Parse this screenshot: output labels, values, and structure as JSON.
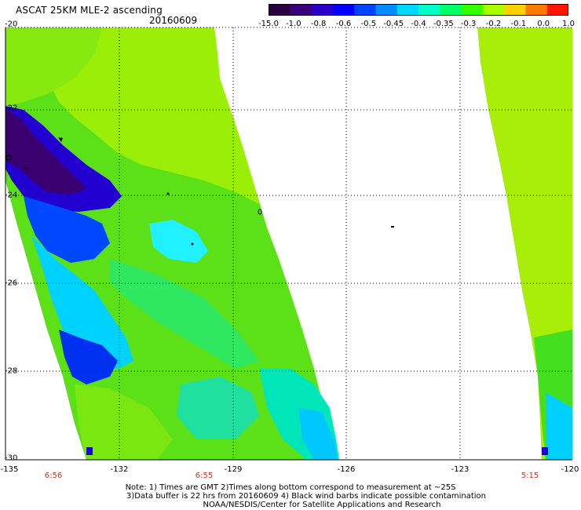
{
  "header": {
    "title": "ASCAT 25KM MLE-2 ascending",
    "date": "20160609"
  },
  "colorbar": {
    "tick_labels": [
      "-15.0",
      "-1.0",
      "-0.8",
      "-0.6",
      "-0.5",
      "-0.45",
      "-0.4",
      "-0.35",
      "-0.3",
      "-0.2",
      "-0.1",
      "0.0",
      "1.0"
    ],
    "colors": [
      "#2b0040",
      "#3a007a",
      "#2a00c8",
      "#0000ff",
      "#0044ff",
      "#008cff",
      "#00d8ff",
      "#00ffc8",
      "#00ff66",
      "#33ff00",
      "#a8ff00",
      "#ffd000",
      "#ff7a00",
      "#ff1500"
    ]
  },
  "axes": {
    "lon_labels": [
      "-135",
      "-132",
      "-129",
      "-126",
      "-123",
      "-120"
    ],
    "lat_labels": [
      "-20",
      "-22",
      "-24",
      "-26",
      "-28",
      "-30"
    ],
    "time_labels": [
      "6:56",
      "6:55",
      "5:15"
    ]
  },
  "map": {
    "background": "#ffffff",
    "swath_fill": "#44ee22",
    "land_color": "#000000"
  },
  "footer": {
    "line1": "Note: 1) Times are GMT 2)Times along bottom correspond to measurement at ~25S",
    "line2": "3)Data buffer is 22 hrs from 20160609 4) Black wind barbs indicate possible contamination",
    "line3": "NOAA/NESDIS/Center for Satellite Applications and Research"
  }
}
